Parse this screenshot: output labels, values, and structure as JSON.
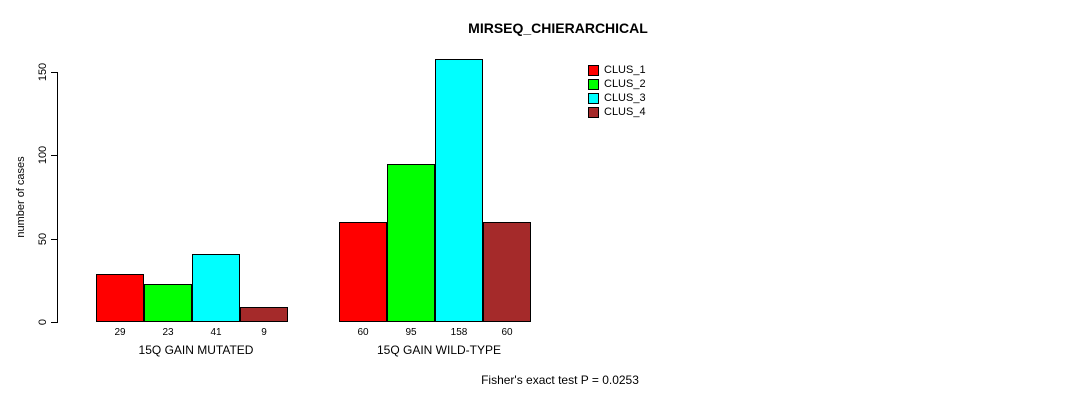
{
  "title": "MIRSEQ_CHIERARCHICAL",
  "chart_data": {
    "type": "bar",
    "title": "MIRSEQ_CHIERARCHICAL",
    "xlabel": "",
    "ylabel": "number of cases",
    "ylim": [
      0,
      150
    ],
    "yticks": [
      0,
      50,
      100,
      150
    ],
    "categories": [
      "15Q GAIN MUTATED",
      "15Q GAIN WILD-TYPE"
    ],
    "series": [
      {
        "name": "CLUS_1",
        "color": "#ff0000",
        "values": [
          29,
          60
        ]
      },
      {
        "name": "CLUS_2",
        "color": "#00ff00",
        "values": [
          23,
          95
        ]
      },
      {
        "name": "CLUS_3",
        "color": "#00ffff",
        "values": [
          41,
          158
        ]
      },
      {
        "name": "CLUS_4",
        "color": "#a52a2a",
        "values": [
          9,
          60
        ]
      }
    ],
    "bar_value_labels": [
      [
        29,
        23,
        41,
        9
      ],
      [
        60,
        95,
        158,
        60
      ]
    ],
    "legend_position": "top-right",
    "grid": false,
    "annotation": "Fisher's exact test P = 0.0253"
  }
}
